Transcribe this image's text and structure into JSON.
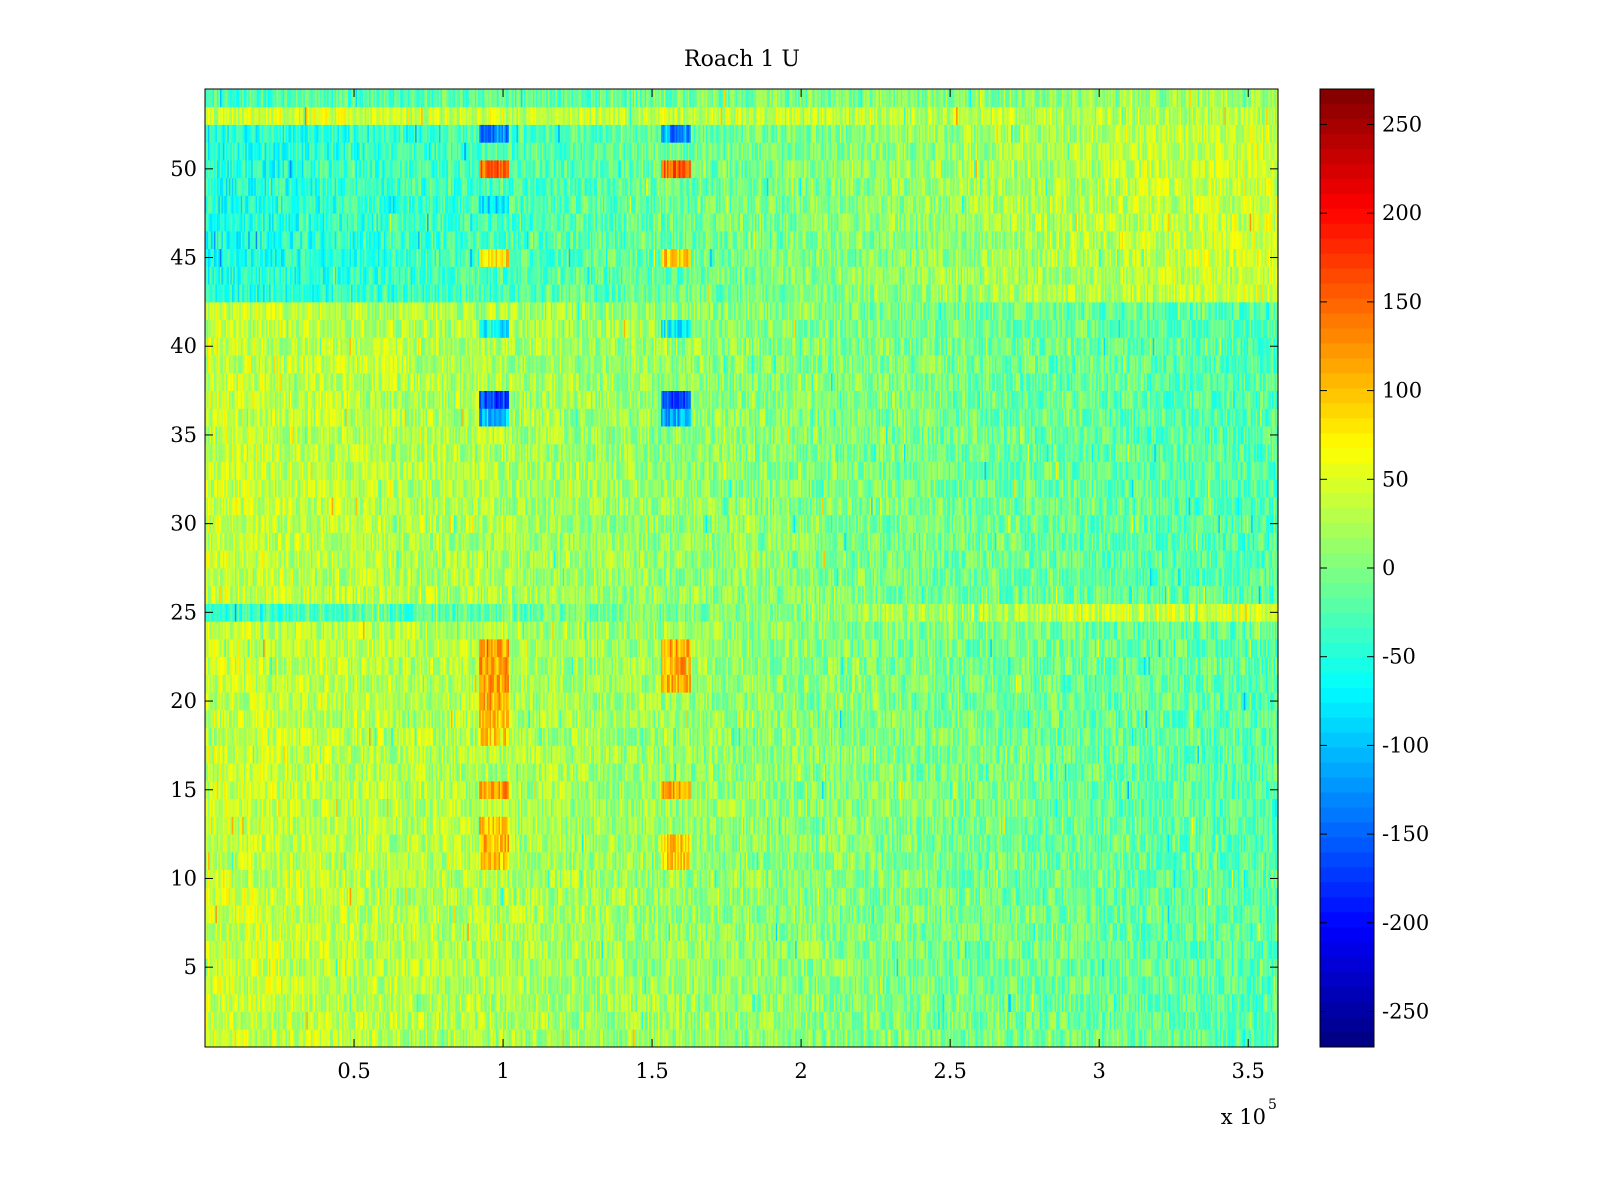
{
  "chart_data": {
    "type": "heatmap",
    "title": "Roach 1 U",
    "xlabel": "",
    "ylabel": "",
    "x_exponent_label": {
      "base": "x 10",
      "exponent": "5"
    },
    "xlim": [
      0,
      360000
    ],
    "ylim": [
      0.5,
      54.5
    ],
    "rows": 54,
    "columns": 720,
    "x_ticks": [
      {
        "value": 50000,
        "label": "0.5"
      },
      {
        "value": 100000,
        "label": "1"
      },
      {
        "value": 150000,
        "label": "1.5"
      },
      {
        "value": 200000,
        "label": "2"
      },
      {
        "value": 250000,
        "label": "2.5"
      },
      {
        "value": 300000,
        "label": "3"
      },
      {
        "value": 350000,
        "label": "3.5"
      }
    ],
    "y_ticks": [
      {
        "value": 5,
        "label": "5"
      },
      {
        "value": 10,
        "label": "10"
      },
      {
        "value": 15,
        "label": "15"
      },
      {
        "value": 20,
        "label": "20"
      },
      {
        "value": 25,
        "label": "25"
      },
      {
        "value": 30,
        "label": "30"
      },
      {
        "value": 35,
        "label": "35"
      },
      {
        "value": 40,
        "label": "40"
      },
      {
        "value": 45,
        "label": "45"
      },
      {
        "value": 50,
        "label": "50"
      }
    ],
    "colorbar": {
      "colormap": "jet",
      "range": [
        -270,
        270
      ],
      "ticks": [
        {
          "value": 250,
          "label": "250"
        },
        {
          "value": 200,
          "label": "200"
        },
        {
          "value": 150,
          "label": "150"
        },
        {
          "value": 100,
          "label": "100"
        },
        {
          "value": 50,
          "label": "50"
        },
        {
          "value": 0,
          "label": "0"
        },
        {
          "value": -50,
          "label": "-50"
        },
        {
          "value": -100,
          "label": "-100"
        },
        {
          "value": -150,
          "label": "-150"
        },
        {
          "value": -200,
          "label": "-200"
        },
        {
          "value": -250,
          "label": "-250"
        }
      ]
    },
    "row_profiles": [
      {
        "rows": [
          1,
          24
        ],
        "value_at_x_min": 40,
        "value_at_x_max": -20
      },
      {
        "rows": [
          25,
          25
        ],
        "value_at_x_min": -40,
        "value_at_x_max": 50
      },
      {
        "rows": [
          26,
          42
        ],
        "value_at_x_min": 40,
        "value_at_x_max": -25
      },
      {
        "rows": [
          43,
          52
        ],
        "value_at_x_min": -55,
        "value_at_x_max": 45
      },
      {
        "rows": [
          53,
          53
        ],
        "value_at_x_min": 45,
        "value_at_x_max": 25
      },
      {
        "rows": [
          54,
          54
        ],
        "value_at_x_min": -30,
        "value_at_x_max": 20
      }
    ],
    "noise_amplitude": 40,
    "events": [
      {
        "x_range": [
          92000,
          102000
        ],
        "rows": [
          52,
          52
        ],
        "value": -130
      },
      {
        "x_range": [
          92000,
          102000
        ],
        "rows": [
          50,
          50
        ],
        "value": 150
      },
      {
        "x_range": [
          92000,
          102000
        ],
        "rows": [
          48,
          48
        ],
        "value": -80
      },
      {
        "x_range": [
          92000,
          102000
        ],
        "rows": [
          45,
          45
        ],
        "value": 80
      },
      {
        "x_range": [
          92000,
          102000
        ],
        "rows": [
          41,
          41
        ],
        "value": -70
      },
      {
        "x_range": [
          92000,
          102000
        ],
        "rows": [
          37,
          37
        ],
        "value": -160
      },
      {
        "x_range": [
          92000,
          102000
        ],
        "rows": [
          36,
          36
        ],
        "value": -100
      },
      {
        "x_range": [
          92000,
          102000
        ],
        "rows": [
          20,
          23
        ],
        "value": 110
      },
      {
        "x_range": [
          92000,
          102000
        ],
        "rows": [
          18,
          19
        ],
        "value": 90
      },
      {
        "x_range": [
          92000,
          102000
        ],
        "rows": [
          15,
          15
        ],
        "value": 120
      },
      {
        "x_range": [
          92000,
          102000
        ],
        "rows": [
          11,
          13
        ],
        "value": 100
      },
      {
        "x_range": [
          153000,
          163000
        ],
        "rows": [
          52,
          52
        ],
        "value": -130
      },
      {
        "x_range": [
          153000,
          163000
        ],
        "rows": [
          50,
          50
        ],
        "value": 150
      },
      {
        "x_range": [
          153000,
          163000
        ],
        "rows": [
          45,
          45
        ],
        "value": 90
      },
      {
        "x_range": [
          153000,
          163000
        ],
        "rows": [
          41,
          41
        ],
        "value": -80
      },
      {
        "x_range": [
          153000,
          163000
        ],
        "rows": [
          37,
          37
        ],
        "value": -160
      },
      {
        "x_range": [
          153000,
          163000
        ],
        "rows": [
          36,
          36
        ],
        "value": -110
      },
      {
        "x_range": [
          153000,
          163000
        ],
        "rows": [
          21,
          23
        ],
        "value": 110
      },
      {
        "x_range": [
          153000,
          163000
        ],
        "rows": [
          15,
          15
        ],
        "value": 110
      },
      {
        "x_range": [
          153000,
          163000
        ],
        "rows": [
          11,
          12
        ],
        "value": 90
      }
    ]
  }
}
